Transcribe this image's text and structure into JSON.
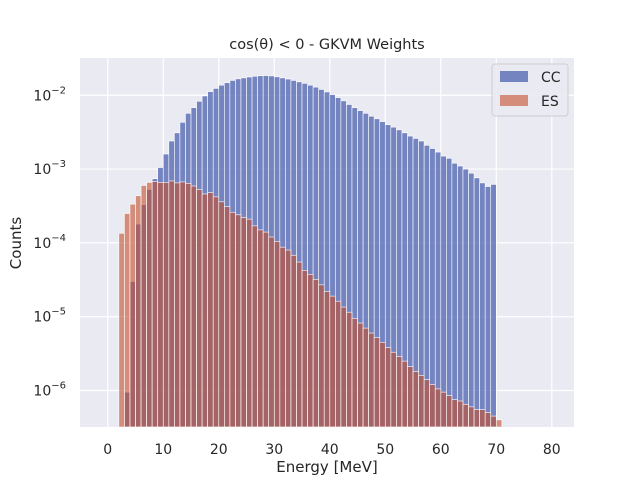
{
  "chart_data": {
    "type": "bar",
    "title": "cos(θ) < 0 - GKVM Weights",
    "xlabel": "Energy [MeV]",
    "ylabel": "Counts",
    "xlim": [
      -5,
      84
    ],
    "ylim": [
      3.2e-07,
      0.032
    ],
    "yscale": "log",
    "x_ticks": [
      0,
      10,
      20,
      30,
      40,
      50,
      60,
      70,
      80
    ],
    "y_ticks": [
      {
        "value": 1e-06,
        "base": "10",
        "exp": "−6"
      },
      {
        "value": 1e-05,
        "base": "10",
        "exp": "−5"
      },
      {
        "value": 0.0001,
        "base": "10",
        "exp": "−4"
      },
      {
        "value": 0.001,
        "base": "10",
        "exp": "−3"
      },
      {
        "value": 0.01,
        "base": "10",
        "exp": "−2"
      }
    ],
    "grid": true,
    "legend_position": "upper-right",
    "bin_width": 1,
    "bin_start": 2,
    "series": [
      {
        "name": "CC",
        "color": "#4c61b0",
        "values": [
          0,
          9.5e-07,
          3e-05,
          0.00018,
          0.00033,
          0.00053,
          0.00074,
          0.00105,
          0.0016,
          0.0024,
          0.0031,
          0.0043,
          0.0057,
          0.0068,
          0.0083,
          0.0098,
          0.0112,
          0.0124,
          0.0137,
          0.0148,
          0.0159,
          0.0167,
          0.0172,
          0.0177,
          0.0181,
          0.0184,
          0.0185,
          0.0183,
          0.0178,
          0.0172,
          0.0166,
          0.0159,
          0.0152,
          0.0145,
          0.0137,
          0.0129,
          0.012,
          0.0111,
          0.0102,
          0.0093,
          0.0084,
          0.0075,
          0.0068,
          0.0062,
          0.0057,
          0.0052,
          0.0048,
          0.0044,
          0.004,
          0.0037,
          0.0034,
          0.0031,
          0.0028,
          0.0026,
          0.0024,
          0.0021,
          0.0019,
          0.0017,
          0.0015,
          0.0014,
          0.0012,
          0.0011,
          0.001,
          0.00088,
          0.00076,
          0.00065,
          0.00058,
          0.00062
        ]
      },
      {
        "name": "ES",
        "color": "#c44e2c",
        "values": [
          0.000135,
          0.00025,
          0.000335,
          0.000435,
          0.0006,
          0.00066,
          0.00068,
          0.00066,
          0.00066,
          0.00069,
          0.00065,
          0.00067,
          0.00064,
          0.00059,
          0.00053,
          0.00046,
          0.00048,
          0.00042,
          0.00036,
          0.00031,
          0.00026,
          0.00024,
          0.00022,
          0.00021,
          0.00017,
          0.00015,
          0.00014,
          0.00012,
          0.000105,
          8.75e-05,
          8e-05,
          6.8e-05,
          5.5e-05,
          4.25e-05,
          3.75e-05,
          3.2e-05,
          2.7e-05,
          2.2e-05,
          1.9e-05,
          1.62e-05,
          1.35e-05,
          1.15e-05,
          9.5e-06,
          8.2e-06,
          7e-06,
          6e-06,
          5.2e-06,
          4.5e-06,
          3.8e-06,
          3.3e-06,
          2.9e-06,
          2.5e-06,
          2.1e-06,
          1.8e-06,
          1.6e-06,
          1.4e-06,
          1.2e-06,
          1.05e-06,
          9.5e-07,
          8.5e-07,
          7.5e-07,
          7.2e-07,
          6.5e-07,
          6e-07,
          5.5e-07,
          5.5e-07,
          5e-07,
          4.5e-07,
          4e-07
        ]
      }
    ]
  }
}
